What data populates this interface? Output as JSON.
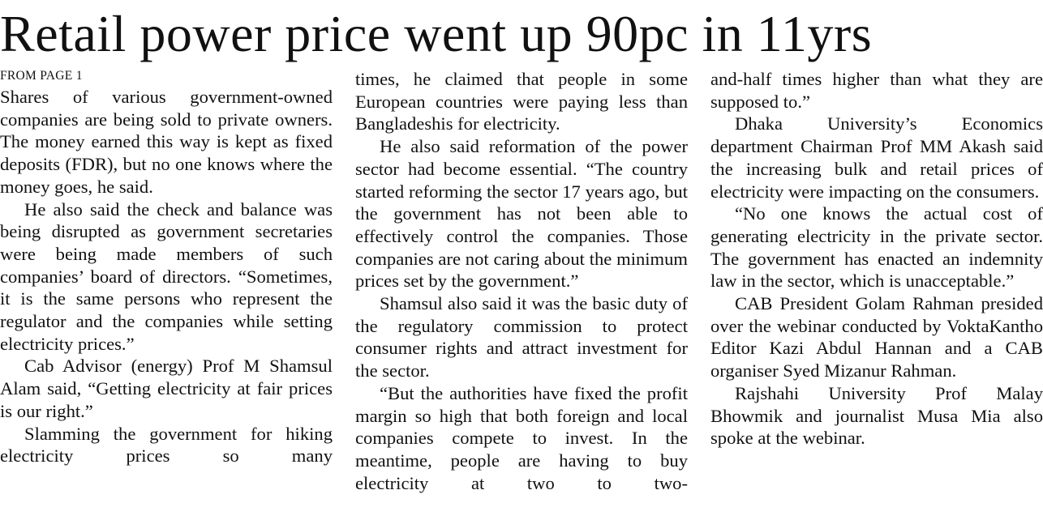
{
  "headline": "Retail power price went up 90pc in 11yrs",
  "kicker": "FROM PAGE 1",
  "columns": [
    {
      "paragraphs": [
        "Shares of various government-owned companies are being sold to private owners. The money earned this way is kept as fixed deposits (FDR), but no one knows where the money goes, he said.",
        "He also said the check and balance was being disrupted as government secretaries were being made members of such companies’ board of directors. “Sometimes, it is the same persons who represent the regulator and the companies while setting electricity prices.”",
        "Cab Advisor (energy) Prof M Shamsul Alam said, “Getting electricity at fair prices is our right.”",
        "Slamming the government for hiking electricity prices so many"
      ]
    },
    {
      "paragraphs": [
        "times, he claimed that people in some European countries were paying less than Bangladeshis for electricity.",
        "He also said reformation of the power sector had become essential. “The country started reforming the sector 17 years ago, but the government has not been able to effectively control the companies. Those companies are not caring about the minimum prices set by the government.”",
        "Shamsul also said it was the basic duty of the regulatory commission to protect consumer rights and attract investment for the sector.",
        "“But the authorities have fixed the profit margin so high that both foreign and local companies compete to invest. In the meantime, people are having to buy electricity at two to two-"
      ]
    },
    {
      "paragraphs": [
        "and-half times higher than what they are supposed to.”",
        "Dhaka University’s Economics department Chairman Prof MM Akash said the increasing bulk and retail prices of electricity were impacting on the consumers.",
        "“No one knows the actual cost of generating electricity in the private sector. The government has enacted an indemnity law in the sector, which is unacceptable.”",
        "CAB President Golam Rahman presided over the webinar conducted by VoktaKantho Editor Kazi Abdul Hannan and a CAB organiser Syed Mizanur Rahman.",
        "Rajshahi University Prof Malay Bhowmik and journalist Musa Mia also spoke at the webinar."
      ]
    }
  ]
}
